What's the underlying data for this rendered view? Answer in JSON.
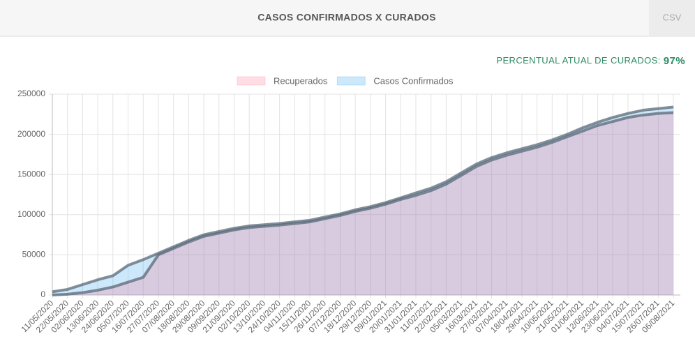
{
  "header": {
    "title": "CASOS CONFIRMADOS X CURADOS",
    "button": "CSV"
  },
  "summary": {
    "label": "PERCENTUAL ATUAL DE CURADOS:",
    "value": "97%"
  },
  "chart_data": {
    "type": "line",
    "categories": [
      "11/05/2020",
      "22/05/2020",
      "02/06/2020",
      "13/06/2020",
      "24/06/2020",
      "05/07/2020",
      "16/07/2020",
      "27/07/2020",
      "07/08/2020",
      "18/08/2020",
      "29/08/2020",
      "09/09/2020",
      "21/09/2020",
      "02/10/2020",
      "13/10/2020",
      "24/10/2020",
      "04/11/2020",
      "15/11/2020",
      "26/11/2020",
      "07/12/2020",
      "18/12/2020",
      "29/12/2020",
      "09/01/2021",
      "20/01/2021",
      "31/01/2021",
      "11/02/2021",
      "22/02/2021",
      "05/03/2021",
      "16/03/2021",
      "27/03/2021",
      "07/04/2021",
      "18/04/2021",
      "29/04/2021",
      "10/05/2021",
      "21/05/2021",
      "01/06/2021",
      "12/06/2021",
      "23/06/2021",
      "04/07/2021",
      "15/07/2021",
      "26/07/2021",
      "06/08/2021"
    ],
    "series": [
      {
        "name": "Recuperados",
        "color": "rgba(255,99,132,0.22)",
        "values": [
          0,
          1000,
          3000,
          6000,
          10000,
          16000,
          22000,
          50000,
          58000,
          66000,
          73000,
          77000,
          81000,
          84000,
          85500,
          87000,
          89000,
          91000,
          95000,
          99000,
          104000,
          108000,
          113000,
          119000,
          124000,
          130000,
          138000,
          149000,
          160000,
          168000,
          174000,
          179000,
          184000,
          190000,
          197000,
          204000,
          211000,
          216000,
          221000,
          224000,
          226000,
          227000
        ]
      },
      {
        "name": "Casos Confirmados",
        "color": "rgba(54,162,235,0.25)",
        "values": [
          4000,
          7000,
          13000,
          19000,
          24000,
          37000,
          44000,
          52000,
          60000,
          68000,
          75000,
          79000,
          83000,
          86000,
          87500,
          89000,
          91000,
          93000,
          97000,
          101000,
          106000,
          110000,
          115000,
          121000,
          127000,
          133000,
          141000,
          152000,
          163000,
          171000,
          177000,
          182000,
          187000,
          193000,
          200000,
          208000,
          215000,
          221000,
          226000,
          230000,
          232000,
          234000
        ]
      }
    ],
    "ylim": [
      0,
      250000
    ],
    "yticks": [
      0,
      50000,
      100000,
      150000,
      200000,
      250000
    ],
    "grid": true,
    "fill": true
  }
}
